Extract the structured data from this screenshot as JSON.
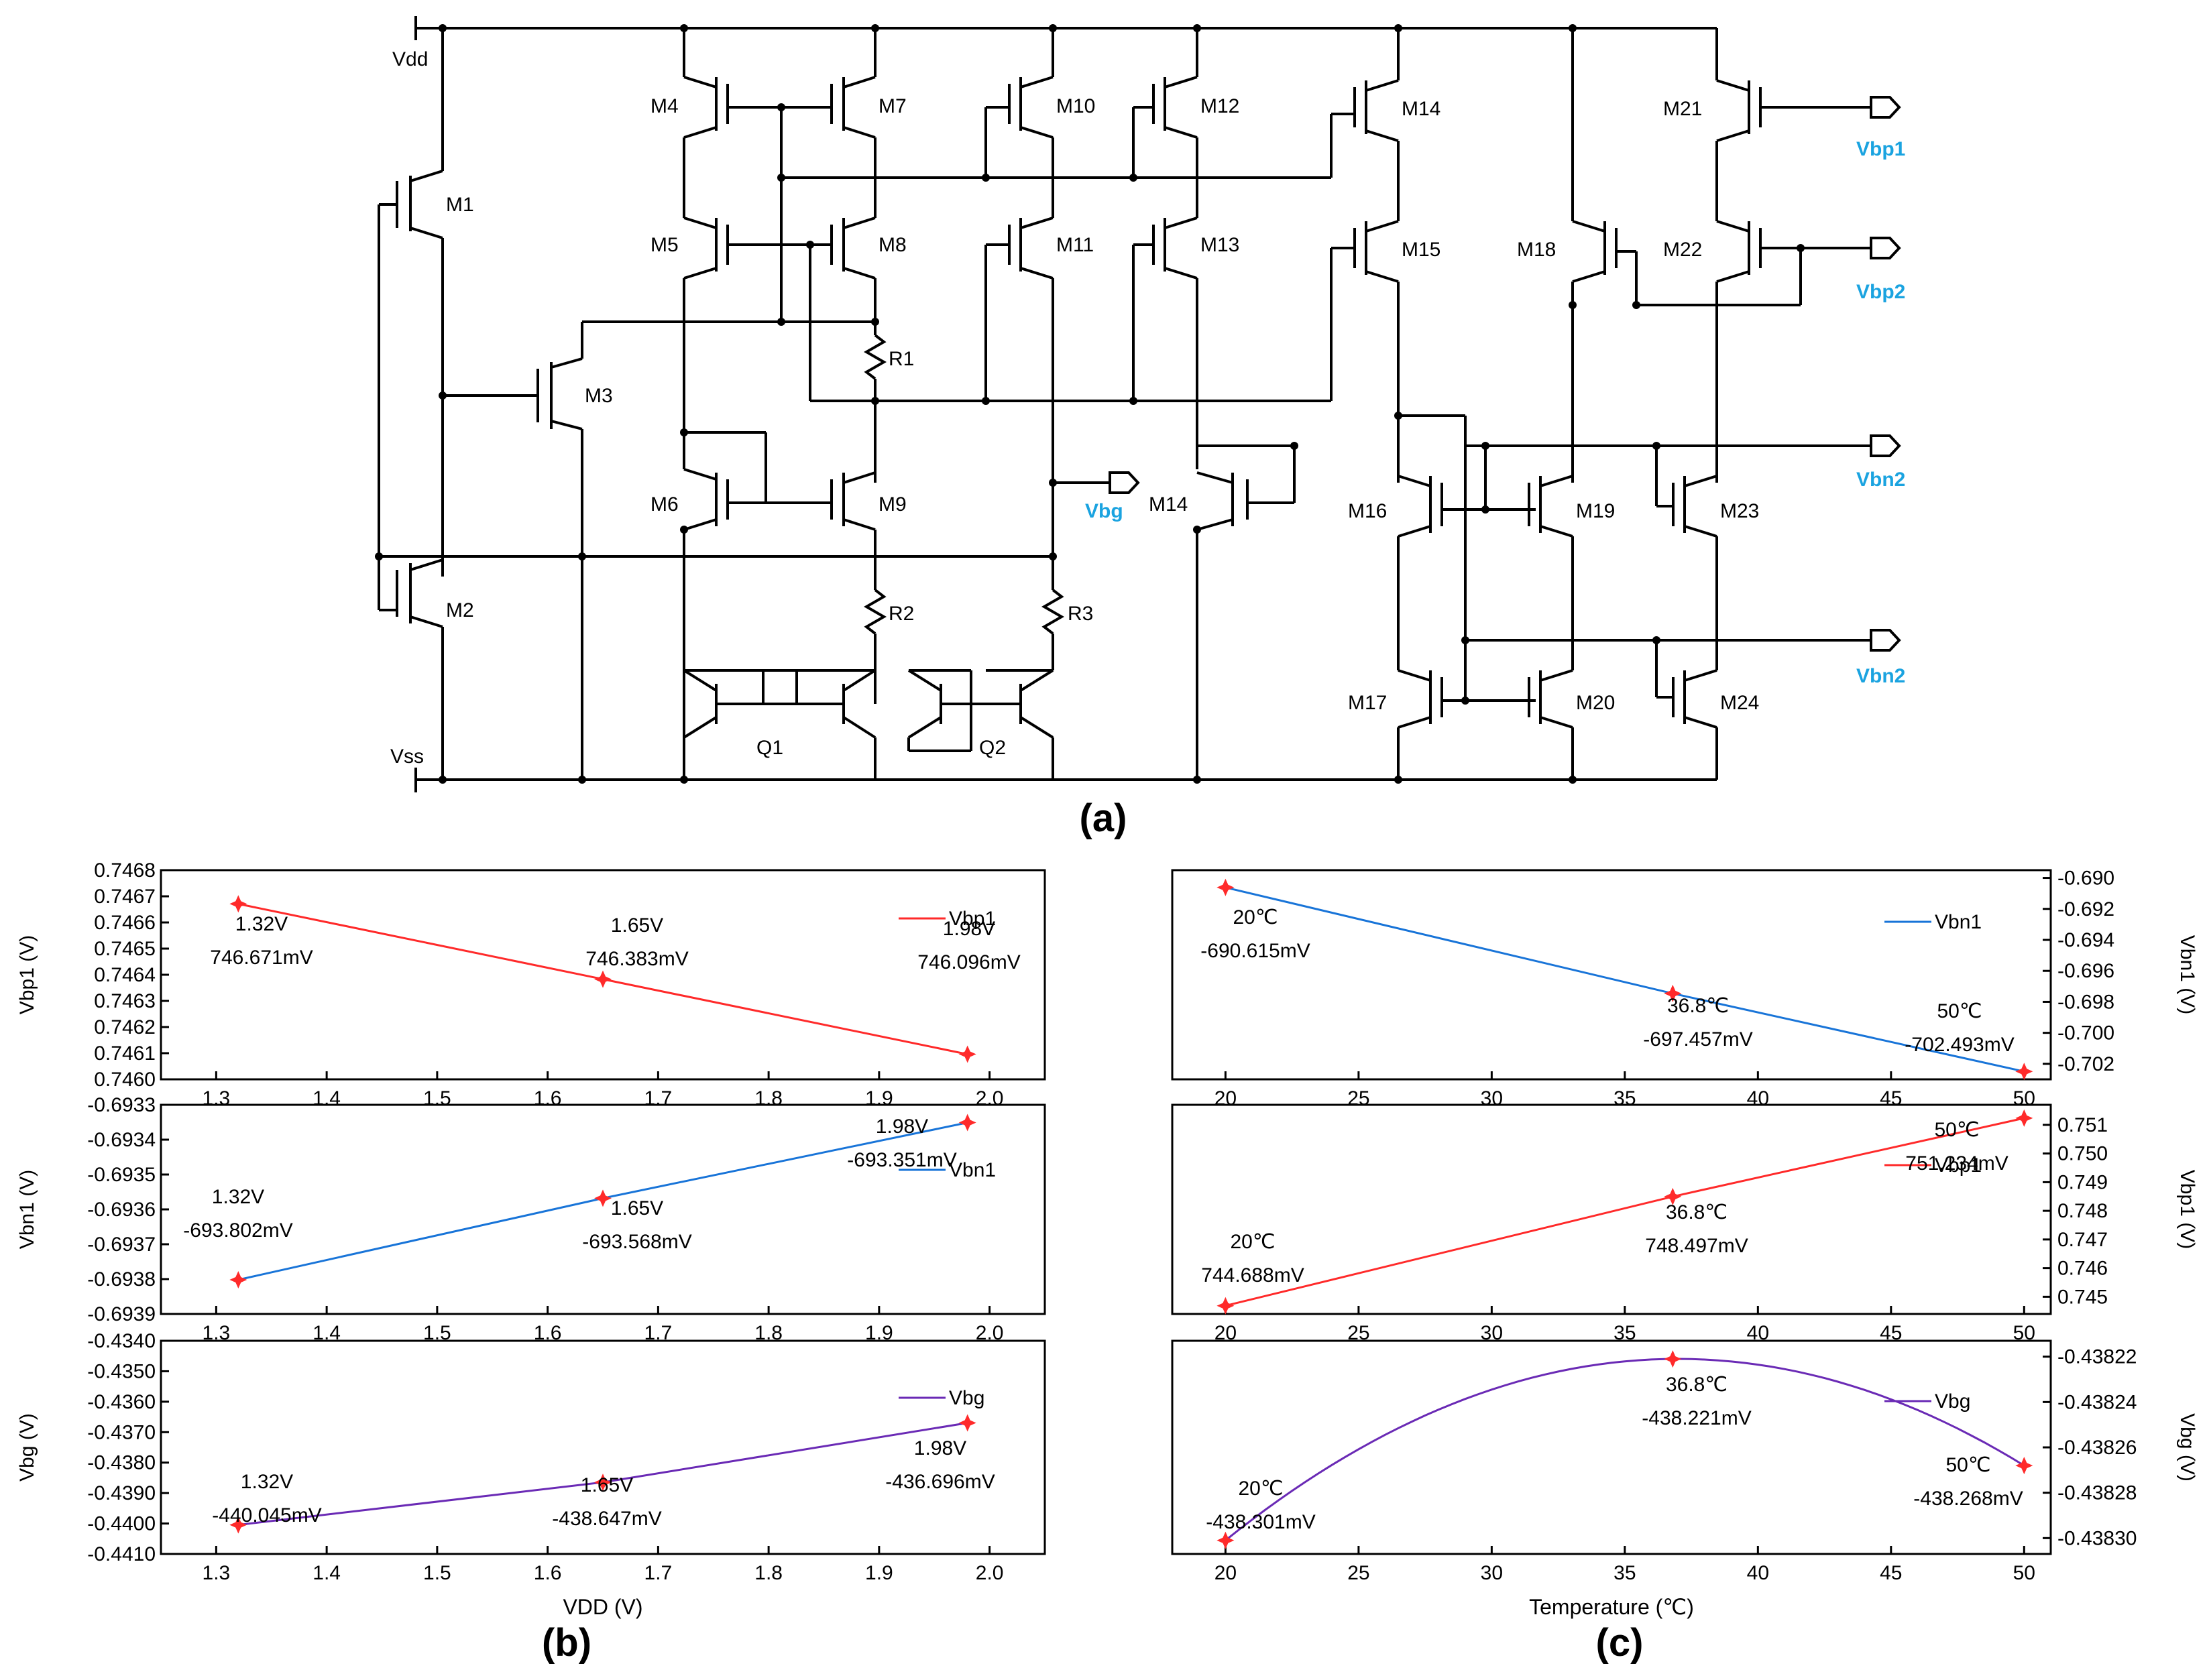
{
  "colors": {
    "red": "#ff2a2a",
    "blue": "#1874d8",
    "purple": "#6a2ab5",
    "label_cyan": "#1aa3e0"
  },
  "schematic": {
    "panel_label": "(a)",
    "rails": [
      "Vdd",
      "Vss"
    ],
    "transistors": [
      "M1",
      "M2",
      "M3",
      "M4",
      "M5",
      "M6",
      "M7",
      "M8",
      "M9",
      "M10",
      "M11",
      "M12",
      "M13",
      "M14",
      "M14",
      "M15",
      "M16",
      "M17",
      "M18",
      "M19",
      "M20",
      "M21",
      "M22",
      "M23",
      "M24"
    ],
    "resistors": [
      "R1",
      "R2",
      "R3"
    ],
    "bjts": [
      "Q1",
      "Q2"
    ],
    "outputs": [
      "Vbg",
      "Vbp1",
      "Vbp2",
      "Vbn2",
      "Vbn2"
    ]
  },
  "chart_data": [
    {
      "type": "line",
      "panel": "b",
      "series": [
        {
          "name": "Vbp1",
          "color": "red",
          "x": [
            1.32,
            1.65,
            1.98
          ],
          "y": [
            0.746671,
            0.746383,
            0.746096
          ]
        }
      ],
      "annotations": [
        [
          "1.32V",
          "746.671mV"
        ],
        [
          "1.65V",
          "746.383mV"
        ],
        [
          "1.98V",
          "746.096mV"
        ]
      ],
      "ylabel": "Vbp1 (V)",
      "xlim": [
        1.25,
        2.05
      ],
      "ylim": [
        0.746,
        0.7468
      ],
      "xticks": [
        "1.3",
        "1.4",
        "1.5",
        "1.6",
        "1.7",
        "1.8",
        "1.9",
        "2.0"
      ],
      "yticks": [
        "0.7460",
        "0.7461",
        "0.7462",
        "0.7463",
        "0.7464",
        "0.7465",
        "0.7466",
        "0.7467",
        "0.7468"
      ]
    },
    {
      "type": "line",
      "panel": "b",
      "series": [
        {
          "name": "Vbn1",
          "color": "blue",
          "x": [
            1.32,
            1.65,
            1.98
          ],
          "y": [
            -0.693802,
            -0.693568,
            -0.693351
          ]
        }
      ],
      "annotations": [
        [
          "1.32V",
          "-693.802mV"
        ],
        [
          "1.65V",
          "-693.568mV"
        ],
        [
          "1.98V",
          "-693.351mV"
        ]
      ],
      "ylabel": "Vbn1 (V)",
      "xlim": [
        1.25,
        2.05
      ],
      "ylim": [
        -0.6939,
        -0.6933
      ],
      "xticks": [
        "1.3",
        "1.4",
        "1.5",
        "1.6",
        "1.7",
        "1.8",
        "1.9",
        "2.0"
      ],
      "yticks": [
        "-0.6939",
        "-0.6938",
        "-0.6937",
        "-0.6936",
        "-0.6935",
        "-0.6934",
        "-0.6933"
      ]
    },
    {
      "type": "line",
      "panel": "b",
      "series": [
        {
          "name": "Vbg",
          "color": "purple",
          "x": [
            1.32,
            1.65,
            1.98
          ],
          "y": [
            -0.440045,
            -0.438647,
            -0.436696
          ]
        }
      ],
      "annotations": [
        [
          "1.32V",
          "-440.045mV"
        ],
        [
          "1.65V",
          "-438.647mV"
        ],
        [
          "1.98V",
          "-436.696mV"
        ]
      ],
      "ylabel": "Vbg (V)",
      "xlabel": "VDD (V)",
      "xlim": [
        1.25,
        2.05
      ],
      "ylim": [
        -0.441,
        -0.434
      ],
      "xticks": [
        "1.3",
        "1.4",
        "1.5",
        "1.6",
        "1.7",
        "1.8",
        "1.9",
        "2.0"
      ],
      "yticks": [
        "-0.4410",
        "-0.4400",
        "-0.4390",
        "-0.4380",
        "-0.4370",
        "-0.4360",
        "-0.4350",
        "-0.4340"
      ]
    },
    {
      "type": "line",
      "panel": "c",
      "series": [
        {
          "name": "Vbn1",
          "color": "blue",
          "x": [
            20,
            36.8,
            50
          ],
          "y": [
            -0.690615,
            -0.697457,
            -0.702493
          ]
        }
      ],
      "annotations": [
        [
          "20℃",
          "-690.615mV"
        ],
        [
          "36.8℃",
          "-697.457mV"
        ],
        [
          "50℃",
          "-702.493mV"
        ]
      ],
      "ylabel": "Vbn1 (V)",
      "xlim": [
        18,
        51
      ],
      "ylim": [
        -0.703,
        -0.6895
      ],
      "xticks": [
        "20",
        "25",
        "30",
        "35",
        "40",
        "45",
        "50"
      ],
      "yticks": [
        "-0.690",
        "-0.692",
        "-0.694",
        "-0.696",
        "-0.698",
        "-0.700",
        "-0.702"
      ]
    },
    {
      "type": "line",
      "panel": "c",
      "series": [
        {
          "name": "Vbp1",
          "color": "red",
          "x": [
            20,
            36.8,
            50
          ],
          "y": [
            0.744688,
            0.748497,
            0.751234
          ]
        }
      ],
      "annotations": [
        [
          "20℃",
          "744.688mV"
        ],
        [
          "36.8℃",
          "748.497mV"
        ],
        [
          "50℃",
          "751.234mV"
        ]
      ],
      "ylabel": "Vbp1 (V)",
      "xlim": [
        18,
        51
      ],
      "ylim": [
        0.7444,
        0.7517
      ],
      "xticks": [
        "20",
        "25",
        "30",
        "35",
        "40",
        "45",
        "50"
      ],
      "yticks": [
        "0.745",
        "0.746",
        "0.747",
        "0.748",
        "0.749",
        "0.750",
        "0.751"
      ]
    },
    {
      "type": "line",
      "panel": "c",
      "series": [
        {
          "name": "Vbg",
          "color": "purple",
          "x": [
            20,
            36.8,
            50
          ],
          "y": [
            -0.438301,
            -0.438221,
            -0.438268
          ]
        }
      ],
      "annotations": [
        [
          "20℃",
          "-438.301mV"
        ],
        [
          "36.8℃",
          "-438.221mV"
        ],
        [
          "50℃",
          "-438.268mV"
        ]
      ],
      "ylabel": "Vbg (V)",
      "xlabel": "Temperature (℃)",
      "xlim": [
        18,
        51
      ],
      "ylim": [
        -0.438307,
        -0.438213
      ],
      "xticks": [
        "20",
        "25",
        "30",
        "35",
        "40",
        "45",
        "50"
      ],
      "yticks": [
        "-0.43822",
        "-0.43824",
        "-0.43826",
        "-0.43828",
        "-0.43830"
      ]
    }
  ],
  "panel_labels": {
    "b": "(b)",
    "c": "(c)"
  }
}
